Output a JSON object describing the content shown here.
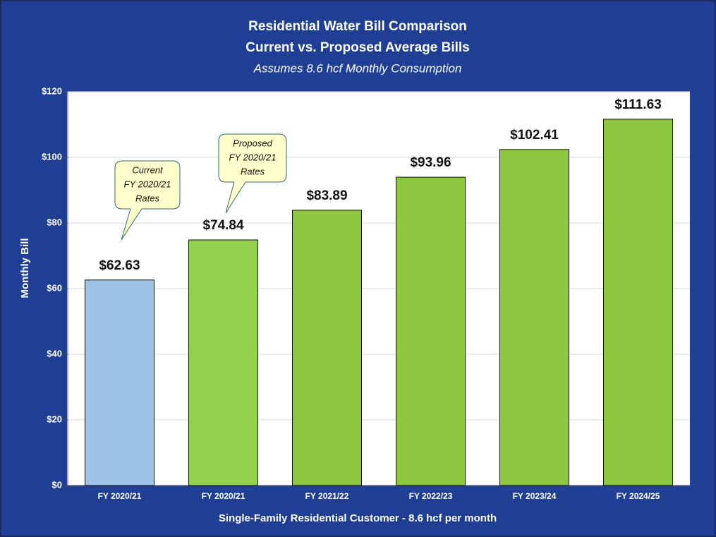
{
  "chart_data": {
    "type": "bar",
    "title": "Residential Water Bill Comparison",
    "subtitle": "Current vs. Proposed Average Bills",
    "subtitle2": "Assumes 8.6 hcf Monthly Consumption",
    "xlabel": "Single-Family Residential Customer - 8.6 hcf per month",
    "ylabel": "Monthly Bill",
    "categories": [
      "FY 2020/21",
      "FY 2020/21",
      "FY 2021/22",
      "FY 2022/23",
      "FY 2023/24",
      "FY 2024/25"
    ],
    "values": [
      62.63,
      74.84,
      83.89,
      93.96,
      102.41,
      111.63
    ],
    "value_labels": [
      "$62.63",
      "$74.84",
      "$83.89",
      "$93.96",
      "$102.41",
      "$111.63"
    ],
    "colors": [
      "#9dc3e6",
      "#92d050",
      "#8dc63f",
      "#8dc63f",
      "#8dc63f",
      "#8dc63f"
    ],
    "ylim": [
      0,
      120
    ],
    "yticks": [
      {
        "value": 0,
        "label": "$0"
      },
      {
        "value": 20,
        "label": "$20"
      },
      {
        "value": 40,
        "label": "$40"
      },
      {
        "value": 60,
        "label": "$60"
      },
      {
        "value": 80,
        "label": "$80"
      },
      {
        "value": 100,
        "label": "$100"
      },
      {
        "value": 120,
        "label": "$120"
      }
    ],
    "grid": true,
    "annotations": [
      {
        "lines": [
          "Current",
          "FY 2020/21",
          "Rates"
        ]
      },
      {
        "lines": [
          "Proposed",
          "FY 2020/21",
          "Rates"
        ]
      }
    ]
  }
}
